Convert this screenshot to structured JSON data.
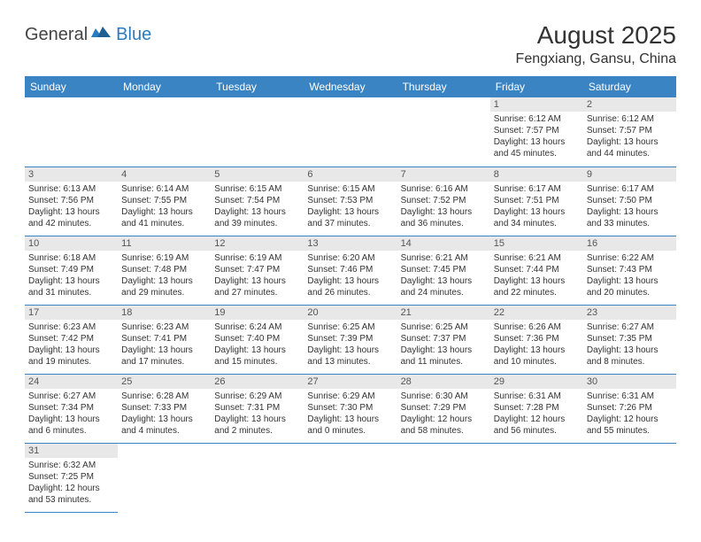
{
  "logo": {
    "general": "General",
    "blue": "Blue"
  },
  "title": "August 2025",
  "location": "Fengxiang, Gansu, China",
  "dayHeaders": [
    "Sunday",
    "Monday",
    "Tuesday",
    "Wednesday",
    "Thursday",
    "Friday",
    "Saturday"
  ],
  "colors": {
    "header_bg": "#3b84c4",
    "header_text": "#ffffff",
    "daynum_bg": "#e8e8e8",
    "cell_border": "#3b84c4",
    "logo_blue": "#2b7bbf"
  },
  "layout": {
    "startCol": 5,
    "cols": 7,
    "rows": 6
  },
  "days": [
    {
      "n": 1,
      "sunrise": "6:12 AM",
      "sunset": "7:57 PM",
      "daylight": "13 hours and 45 minutes."
    },
    {
      "n": 2,
      "sunrise": "6:12 AM",
      "sunset": "7:57 PM",
      "daylight": "13 hours and 44 minutes."
    },
    {
      "n": 3,
      "sunrise": "6:13 AM",
      "sunset": "7:56 PM",
      "daylight": "13 hours and 42 minutes."
    },
    {
      "n": 4,
      "sunrise": "6:14 AM",
      "sunset": "7:55 PM",
      "daylight": "13 hours and 41 minutes."
    },
    {
      "n": 5,
      "sunrise": "6:15 AM",
      "sunset": "7:54 PM",
      "daylight": "13 hours and 39 minutes."
    },
    {
      "n": 6,
      "sunrise": "6:15 AM",
      "sunset": "7:53 PM",
      "daylight": "13 hours and 37 minutes."
    },
    {
      "n": 7,
      "sunrise": "6:16 AM",
      "sunset": "7:52 PM",
      "daylight": "13 hours and 36 minutes."
    },
    {
      "n": 8,
      "sunrise": "6:17 AM",
      "sunset": "7:51 PM",
      "daylight": "13 hours and 34 minutes."
    },
    {
      "n": 9,
      "sunrise": "6:17 AM",
      "sunset": "7:50 PM",
      "daylight": "13 hours and 33 minutes."
    },
    {
      "n": 10,
      "sunrise": "6:18 AM",
      "sunset": "7:49 PM",
      "daylight": "13 hours and 31 minutes."
    },
    {
      "n": 11,
      "sunrise": "6:19 AM",
      "sunset": "7:48 PM",
      "daylight": "13 hours and 29 minutes."
    },
    {
      "n": 12,
      "sunrise": "6:19 AM",
      "sunset": "7:47 PM",
      "daylight": "13 hours and 27 minutes."
    },
    {
      "n": 13,
      "sunrise": "6:20 AM",
      "sunset": "7:46 PM",
      "daylight": "13 hours and 26 minutes."
    },
    {
      "n": 14,
      "sunrise": "6:21 AM",
      "sunset": "7:45 PM",
      "daylight": "13 hours and 24 minutes."
    },
    {
      "n": 15,
      "sunrise": "6:21 AM",
      "sunset": "7:44 PM",
      "daylight": "13 hours and 22 minutes."
    },
    {
      "n": 16,
      "sunrise": "6:22 AM",
      "sunset": "7:43 PM",
      "daylight": "13 hours and 20 minutes."
    },
    {
      "n": 17,
      "sunrise": "6:23 AM",
      "sunset": "7:42 PM",
      "daylight": "13 hours and 19 minutes."
    },
    {
      "n": 18,
      "sunrise": "6:23 AM",
      "sunset": "7:41 PM",
      "daylight": "13 hours and 17 minutes."
    },
    {
      "n": 19,
      "sunrise": "6:24 AM",
      "sunset": "7:40 PM",
      "daylight": "13 hours and 15 minutes."
    },
    {
      "n": 20,
      "sunrise": "6:25 AM",
      "sunset": "7:39 PM",
      "daylight": "13 hours and 13 minutes."
    },
    {
      "n": 21,
      "sunrise": "6:25 AM",
      "sunset": "7:37 PM",
      "daylight": "13 hours and 11 minutes."
    },
    {
      "n": 22,
      "sunrise": "6:26 AM",
      "sunset": "7:36 PM",
      "daylight": "13 hours and 10 minutes."
    },
    {
      "n": 23,
      "sunrise": "6:27 AM",
      "sunset": "7:35 PM",
      "daylight": "13 hours and 8 minutes."
    },
    {
      "n": 24,
      "sunrise": "6:27 AM",
      "sunset": "7:34 PM",
      "daylight": "13 hours and 6 minutes."
    },
    {
      "n": 25,
      "sunrise": "6:28 AM",
      "sunset": "7:33 PM",
      "daylight": "13 hours and 4 minutes."
    },
    {
      "n": 26,
      "sunrise": "6:29 AM",
      "sunset": "7:31 PM",
      "daylight": "13 hours and 2 minutes."
    },
    {
      "n": 27,
      "sunrise": "6:29 AM",
      "sunset": "7:30 PM",
      "daylight": "13 hours and 0 minutes."
    },
    {
      "n": 28,
      "sunrise": "6:30 AM",
      "sunset": "7:29 PM",
      "daylight": "12 hours and 58 minutes."
    },
    {
      "n": 29,
      "sunrise": "6:31 AM",
      "sunset": "7:28 PM",
      "daylight": "12 hours and 56 minutes."
    },
    {
      "n": 30,
      "sunrise": "6:31 AM",
      "sunset": "7:26 PM",
      "daylight": "12 hours and 55 minutes."
    },
    {
      "n": 31,
      "sunrise": "6:32 AM",
      "sunset": "7:25 PM",
      "daylight": "12 hours and 53 minutes."
    }
  ],
  "labels": {
    "sunrise": "Sunrise:",
    "sunset": "Sunset:",
    "daylight": "Daylight:"
  }
}
